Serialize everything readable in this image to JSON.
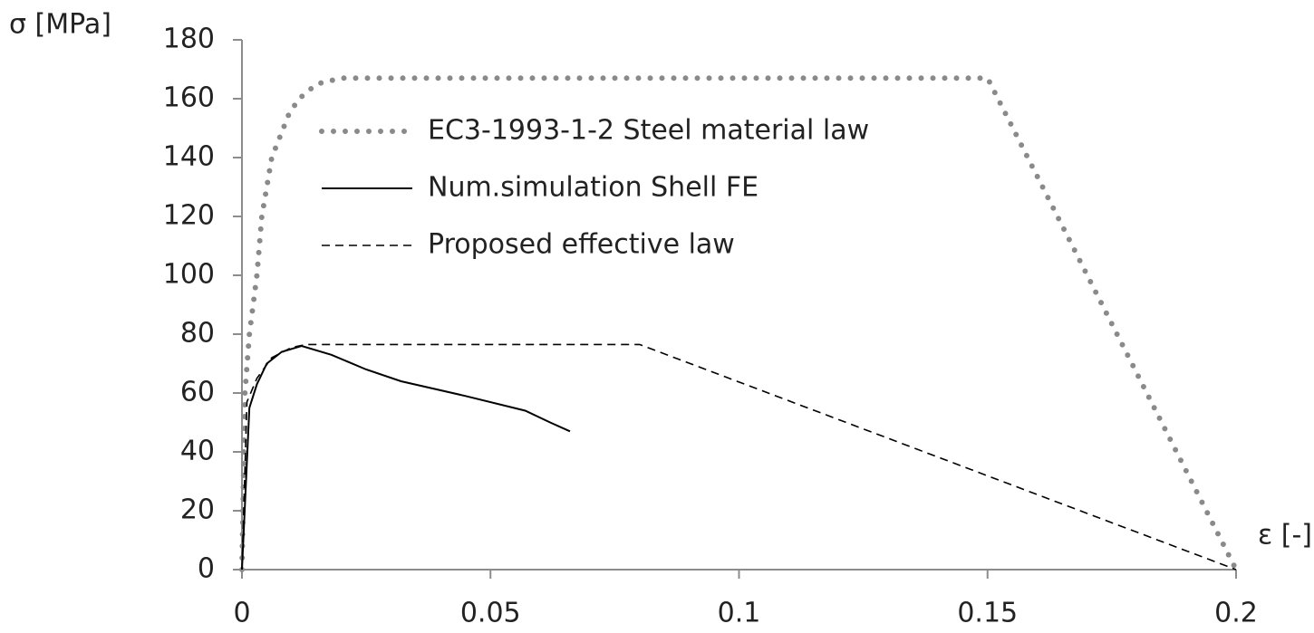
{
  "chart_data": {
    "type": "line",
    "xlabel": "ε  [-]",
    "ylabel": "σ  [MPa]",
    "xlim": [
      0,
      0.2
    ],
    "xticks": [
      0,
      0.05,
      0.1,
      0.15,
      0.2
    ],
    "ylim": [
      0,
      180
    ],
    "yticks": [
      0,
      20,
      40,
      60,
      80,
      100,
      120,
      140,
      160,
      180
    ],
    "grid": false,
    "legend": "upper left",
    "series": [
      {
        "name": "EC3-1993-1-2 Steel material law",
        "color": "#8a8a8a",
        "style": "dotted",
        "x": [
          0,
          0.0006,
          0.0015,
          0.003,
          0.004,
          0.006,
          0.0095,
          0.0115,
          0.015,
          0.02,
          0.15,
          0.2
        ],
        "values": [
          0,
          60,
          80,
          100,
          120,
          140,
          155,
          160,
          165,
          167,
          167,
          0
        ]
      },
      {
        "name": "Num.simulation Shell FE",
        "color": "#000000",
        "style": "solid",
        "x": [
          0,
          0.0015,
          0.003,
          0.005,
          0.008,
          0.012,
          0.018,
          0.025,
          0.032,
          0.045,
          0.057,
          0.062,
          0.066
        ],
        "values": [
          0,
          55,
          63,
          70,
          74,
          76,
          73,
          68,
          64,
          59,
          54,
          50,
          47
        ]
      },
      {
        "name": "Proposed effective law",
        "color": "#000000",
        "style": "dashed",
        "x": [
          0,
          0.001,
          0.003,
          0.006,
          0.01,
          0.013,
          0.08,
          0.2
        ],
        "values": [
          0,
          57,
          65,
          72,
          75.5,
          76.5,
          76.5,
          0
        ]
      }
    ]
  }
}
